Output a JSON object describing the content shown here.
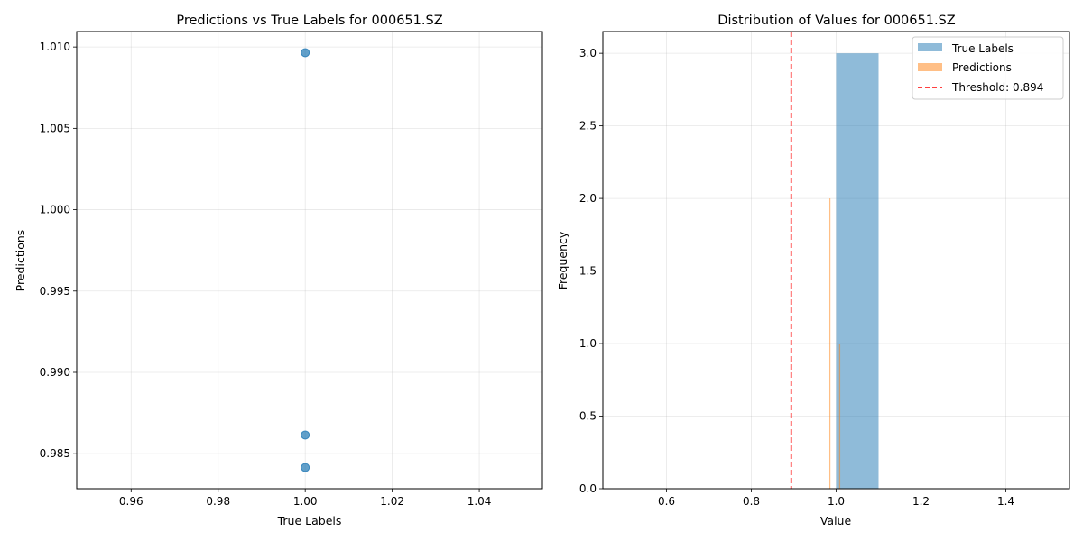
{
  "chart_data": [
    {
      "type": "scatter",
      "title": "Predictions vs True Labels for 000651.SZ",
      "xlabel": "True Labels",
      "ylabel": "Predictions",
      "xlim": [
        0.9475,
        1.0545
      ],
      "ylim": [
        0.98285,
        1.01095
      ],
      "xticks": [
        0.96,
        0.98,
        1.0,
        1.02,
        1.04
      ],
      "xtick_labels": [
        "0.96",
        "0.98",
        "1.00",
        "1.02",
        "1.04"
      ],
      "yticks": [
        0.985,
        0.99,
        0.995,
        1.0,
        1.005,
        1.01
      ],
      "ytick_labels": [
        "0.985",
        "0.990",
        "0.995",
        "1.000",
        "1.005",
        "1.010"
      ],
      "grid": true,
      "color": "#1f77b4",
      "points": [
        {
          "x": 1.0,
          "y": 1.00965
        },
        {
          "x": 1.0,
          "y": 0.98615
        },
        {
          "x": 1.0,
          "y": 0.98415
        }
      ]
    },
    {
      "type": "histogram",
      "title": "Distribution of Values for 000651.SZ",
      "xlabel": "Value",
      "ylabel": "Frequency",
      "xlim": [
        0.45,
        1.55
      ],
      "ylim": [
        0,
        3.15
      ],
      "xticks": [
        0.6,
        0.8,
        1.0,
        1.2,
        1.4
      ],
      "xtick_labels": [
        "0.6",
        "0.8",
        "1.0",
        "1.2",
        "1.4"
      ],
      "yticks": [
        0.0,
        0.5,
        1.0,
        1.5,
        2.0,
        2.5,
        3.0
      ],
      "ytick_labels": [
        "0.0",
        "0.5",
        "1.0",
        "1.5",
        "2.0",
        "2.5",
        "3.0"
      ],
      "grid": true,
      "legend_position": "top-right",
      "series": [
        {
          "name": "True Labels",
          "color": "#1f77b4",
          "opacity": 0.5,
          "bins": [
            {
              "start": 1.0,
              "end": 1.1,
              "count": 3
            }
          ]
        },
        {
          "name": "Predictions",
          "color": "#ff7f0e",
          "opacity": 0.5,
          "bins": [
            {
              "start": 0.984,
              "end": 0.9866,
              "count": 2
            },
            {
              "start": 1.007,
              "end": 1.0097,
              "count": 1
            }
          ]
        }
      ],
      "threshold": {
        "value": 0.894,
        "label": "Threshold: 0.894",
        "color": "#ff0000"
      }
    }
  ]
}
